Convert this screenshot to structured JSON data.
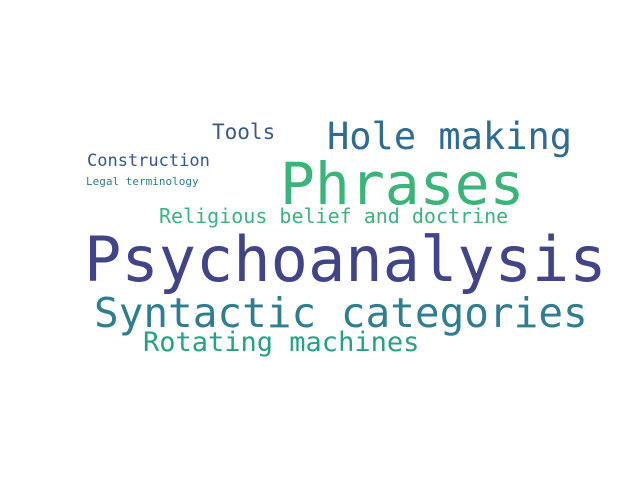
{
  "words": {
    "tools": {
      "text": "Tools",
      "color": "#3b5a86"
    },
    "hole_making": {
      "text": "Hole making",
      "color": "#2f6c8e"
    },
    "construction": {
      "text": "Construction",
      "color": "#35588b"
    },
    "legal_terminology": {
      "text": "Legal terminology",
      "color": "#2b7f8e"
    },
    "phrases": {
      "text": "Phrases",
      "color": "#3bb47a"
    },
    "religious_belief": {
      "text": "Religious belief and doctrine",
      "color": "#3cb37f"
    },
    "psychoanalysis": {
      "text": "Psychoanalysis",
      "color": "#414487"
    },
    "syntactic_categories": {
      "text": "Syntactic categories",
      "color": "#2e7e8e"
    },
    "rotating_machines": {
      "text": "Rotating machines",
      "color": "#27a085"
    }
  }
}
